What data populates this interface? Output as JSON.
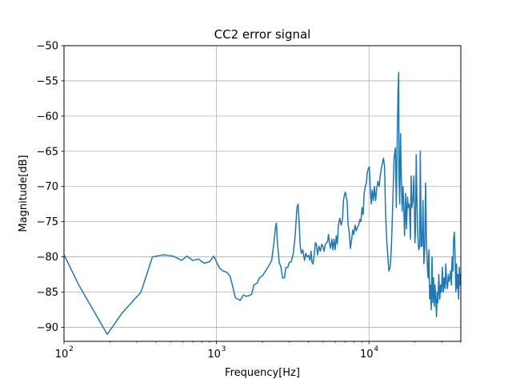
{
  "chart_data": {
    "type": "line",
    "title": "CC2 error signal",
    "xlabel": "Frequency[Hz]",
    "ylabel": "Magnitude[dB]",
    "xscale": "log",
    "xlim": [
      100,
      40000
    ],
    "ylim": [
      -92,
      -50
    ],
    "grid": true,
    "x_ticks": [
      {
        "value": 100,
        "base": "10",
        "exp": "2"
      },
      {
        "value": 1000,
        "base": "10",
        "exp": "3"
      },
      {
        "value": 10000,
        "base": "10",
        "exp": "4"
      }
    ],
    "y_ticks": [
      {
        "value": -50,
        "label": "−50"
      },
      {
        "value": -55,
        "label": "−55"
      },
      {
        "value": -60,
        "label": "−60"
      },
      {
        "value": -65,
        "label": "−65"
      },
      {
        "value": -70,
        "label": "−70"
      },
      {
        "value": -75,
        "label": "−75"
      },
      {
        "value": -80,
        "label": "−80"
      },
      {
        "value": -85,
        "label": "−85"
      },
      {
        "value": -90,
        "label": "−90"
      }
    ],
    "series": [
      {
        "color": "#1f77b4",
        "points": [
          [
            100,
            -79.7
          ],
          [
            125,
            -84
          ],
          [
            155,
            -87.5
          ],
          [
            192,
            -91
          ],
          [
            240,
            -88
          ],
          [
            320,
            -85
          ],
          [
            380,
            -80
          ],
          [
            450,
            -79.7
          ],
          [
            520,
            -79.9
          ],
          [
            590,
            -80.5
          ],
          [
            640,
            -79.9
          ],
          [
            700,
            -80.5
          ],
          [
            760,
            -80.3
          ],
          [
            830,
            -80.9
          ],
          [
            900,
            -80.7
          ],
          [
            960,
            -79.9
          ],
          [
            1040,
            -81.5
          ],
          [
            1100,
            -82
          ],
          [
            1170,
            -82.2
          ],
          [
            1230,
            -82.8
          ],
          [
            1330,
            -85.8
          ],
          [
            1430,
            -86.2
          ],
          [
            1500,
            -85.4
          ],
          [
            1560,
            -85.6
          ],
          [
            1640,
            -85.5
          ],
          [
            1700,
            -85.3
          ],
          [
            1760,
            -84
          ],
          [
            1850,
            -83.7
          ],
          [
            1910,
            -83
          ],
          [
            2000,
            -82.7
          ],
          [
            2100,
            -82
          ],
          [
            2200,
            -81.3
          ],
          [
            2300,
            -80.5
          ],
          [
            2380,
            -78
          ],
          [
            2440,
            -75.7
          ],
          [
            2470,
            -75.2
          ],
          [
            2510,
            -78
          ],
          [
            2580,
            -80.8
          ],
          [
            2650,
            -81.5
          ],
          [
            2710,
            -83
          ],
          [
            2790,
            -83
          ],
          [
            2850,
            -81.5
          ],
          [
            2930,
            -81.5
          ],
          [
            3000,
            -80.8
          ],
          [
            3090,
            -80.7
          ],
          [
            3190,
            -79.5
          ],
          [
            3280,
            -77
          ],
          [
            3370,
            -73
          ],
          [
            3430,
            -72.5
          ],
          [
            3480,
            -75
          ],
          [
            3540,
            -78.5
          ],
          [
            3600,
            -79.5
          ],
          [
            3680,
            -79
          ],
          [
            3780,
            -80.5
          ],
          [
            3850,
            -79.5
          ],
          [
            3930,
            -80
          ],
          [
            4020,
            -79.8
          ],
          [
            4100,
            -80.5
          ],
          [
            4170,
            -79.2
          ],
          [
            4230,
            -80.8
          ],
          [
            4300,
            -81
          ],
          [
            4380,
            -79.5
          ],
          [
            4450,
            -78
          ],
          [
            4520,
            -78.2
          ],
          [
            4600,
            -79.7
          ],
          [
            4700,
            -78.5
          ],
          [
            4800,
            -79.2
          ],
          [
            4900,
            -78.2
          ],
          [
            4980,
            -78.5
          ],
          [
            5070,
            -79.2
          ],
          [
            5160,
            -78.3
          ],
          [
            5260,
            -78
          ],
          [
            5350,
            -77.8
          ],
          [
            5430,
            -76.8
          ],
          [
            5500,
            -78
          ],
          [
            5600,
            -78.8
          ],
          [
            5710,
            -77.5
          ],
          [
            5800,
            -79
          ],
          [
            5900,
            -77.5
          ],
          [
            6000,
            -79
          ],
          [
            6100,
            -77
          ],
          [
            6200,
            -78.2
          ],
          [
            6300,
            -75.5
          ],
          [
            6430,
            -74.5
          ],
          [
            6570,
            -75.5
          ],
          [
            6700,
            -74.7
          ],
          [
            6800,
            -72
          ],
          [
            6900,
            -71.2
          ],
          [
            7000,
            -70.8
          ],
          [
            7080,
            -71.5
          ],
          [
            7180,
            -72
          ],
          [
            7300,
            -75.5
          ],
          [
            7420,
            -76.5
          ],
          [
            7550,
            -78.8
          ],
          [
            7700,
            -77.5
          ],
          [
            7820,
            -76.2
          ],
          [
            7950,
            -76.8
          ],
          [
            8100,
            -75.5
          ],
          [
            8250,
            -76.3
          ],
          [
            8400,
            -75.8
          ],
          [
            8550,
            -75.5
          ],
          [
            8700,
            -74.7
          ],
          [
            8850,
            -75
          ],
          [
            9000,
            -73
          ],
          [
            9150,
            -74
          ],
          [
            9300,
            -71
          ],
          [
            9450,
            -70
          ],
          [
            9600,
            -69.5
          ],
          [
            9750,
            -68
          ],
          [
            9900,
            -67.5
          ],
          [
            10050,
            -67.2
          ],
          [
            10200,
            -70.5
          ],
          [
            10350,
            -72.5
          ],
          [
            10500,
            -70.5
          ],
          [
            10680,
            -72
          ],
          [
            10850,
            -70
          ],
          [
            11050,
            -72
          ],
          [
            11250,
            -70.2
          ],
          [
            11450,
            -69.3
          ],
          [
            11650,
            -70
          ],
          [
            11850,
            -68.5
          ],
          [
            12050,
            -67.5
          ],
          [
            12250,
            -66.7
          ],
          [
            12450,
            -66
          ],
          [
            12650,
            -67.2
          ],
          [
            12850,
            -74
          ],
          [
            13100,
            -78
          ],
          [
            13300,
            -80
          ],
          [
            13500,
            -82
          ],
          [
            13750,
            -81.5
          ],
          [
            14000,
            -79
          ],
          [
            14200,
            -75
          ],
          [
            14400,
            -70.5
          ],
          [
            14600,
            -66
          ],
          [
            14900,
            -64.5
          ],
          [
            15100,
            -73
          ],
          [
            15300,
            -64
          ],
          [
            15500,
            -56.5
          ],
          [
            15650,
            -53.8
          ],
          [
            15750,
            -69
          ],
          [
            15900,
            -72.5
          ],
          [
            16100,
            -62.5
          ],
          [
            16300,
            -69
          ],
          [
            16500,
            -73.5
          ],
          [
            16700,
            -70
          ],
          [
            16900,
            -72.5
          ],
          [
            17100,
            -77
          ],
          [
            17400,
            -71
          ],
          [
            17600,
            -76
          ],
          [
            17900,
            -71.5
          ],
          [
            18100,
            -73
          ],
          [
            18400,
            -72.5
          ],
          [
            18700,
            -77.5
          ],
          [
            18900,
            -68.5
          ],
          [
            19100,
            -73
          ],
          [
            19400,
            -72
          ],
          [
            19700,
            -68.5
          ],
          [
            20000,
            -78
          ],
          [
            20200,
            -76
          ],
          [
            20400,
            -65.5
          ],
          [
            20600,
            -71
          ],
          [
            20900,
            -77
          ],
          [
            21200,
            -79
          ],
          [
            21500,
            -78.5
          ],
          [
            21700,
            -65
          ],
          [
            22000,
            -78.5
          ],
          [
            22300,
            -78.5
          ],
          [
            22600,
            -72
          ],
          [
            22900,
            -81
          ],
          [
            23200,
            -79
          ],
          [
            23500,
            -69.5
          ],
          [
            23800,
            -77.5
          ],
          [
            24100,
            -81
          ],
          [
            24400,
            -83
          ],
          [
            24700,
            -79
          ],
          [
            25000,
            -86
          ],
          [
            25300,
            -84
          ],
          [
            25600,
            -87.5
          ],
          [
            25900,
            -80
          ],
          [
            26200,
            -86.5
          ],
          [
            26500,
            -83
          ],
          [
            26800,
            -87
          ],
          [
            27100,
            -84
          ],
          [
            27400,
            -86
          ],
          [
            27700,
            -88.5
          ],
          [
            28000,
            -85
          ],
          [
            28300,
            -86.5
          ],
          [
            28700,
            -82.5
          ],
          [
            29100,
            -86
          ],
          [
            29500,
            -84
          ],
          [
            29900,
            -85
          ],
          [
            30300,
            -81.5
          ],
          [
            30700,
            -85
          ],
          [
            31100,
            -83
          ],
          [
            31500,
            -84.5
          ],
          [
            31900,
            -81
          ],
          [
            32300,
            -83.8
          ],
          [
            32700,
            -84.5
          ],
          [
            33100,
            -82.5
          ],
          [
            33500,
            -83.5
          ],
          [
            33900,
            -83
          ],
          [
            34300,
            -82
          ],
          [
            34700,
            -84
          ],
          [
            35100,
            -80
          ],
          [
            35500,
            -82
          ],
          [
            35900,
            -77.5
          ],
          [
            36300,
            -76.5
          ],
          [
            36700,
            -80
          ],
          [
            37100,
            -85
          ],
          [
            37500,
            -81
          ],
          [
            37900,
            -84.5
          ],
          [
            38300,
            -82.5
          ],
          [
            38700,
            -86
          ],
          [
            39100,
            -81.5
          ],
          [
            39500,
            -84
          ],
          [
            40000,
            -82.5
          ]
        ]
      }
    ]
  }
}
